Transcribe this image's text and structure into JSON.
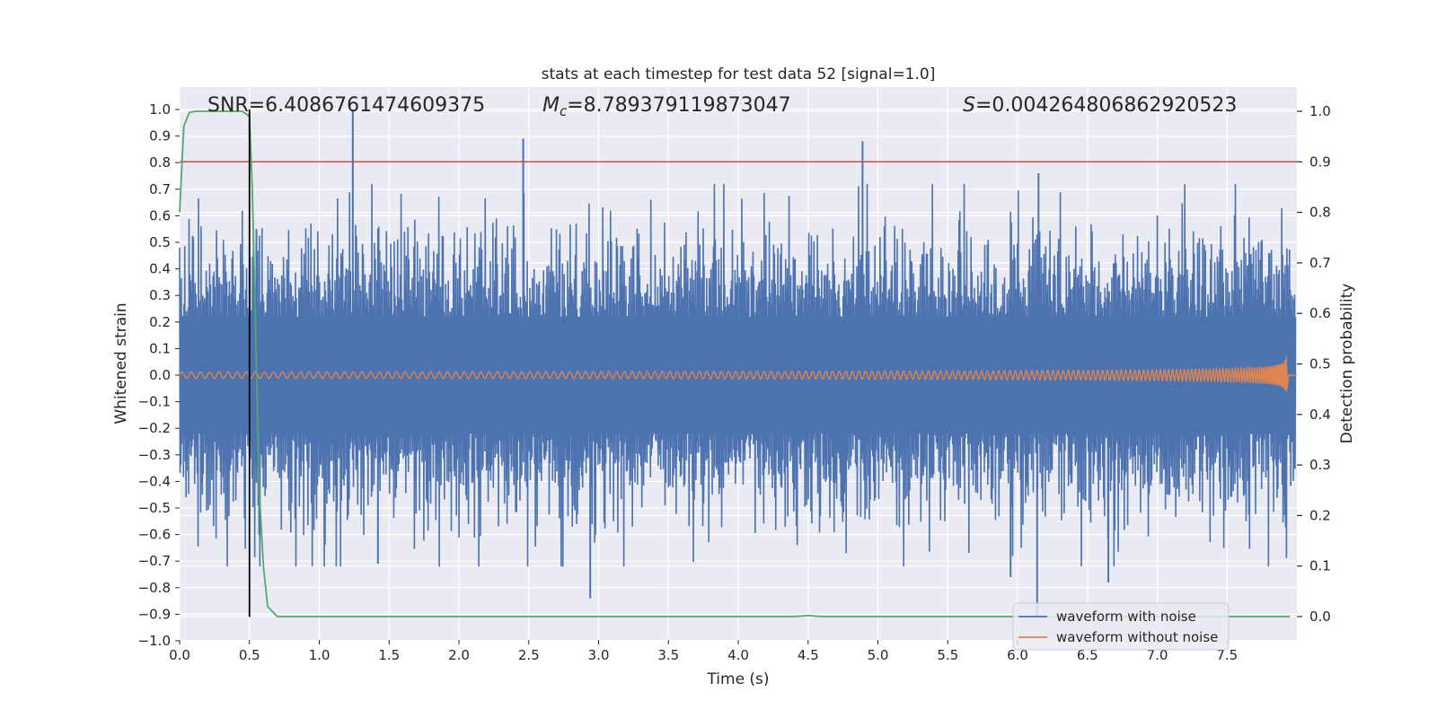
{
  "chart_data": {
    "type": "line",
    "title": "stats at each timestep for test data 52 [signal=1.0]",
    "xlabel": "Time (s)",
    "ylabel": "Whitened strain",
    "y2label": "Detection probability",
    "xlim": [
      0.0,
      8.0
    ],
    "ylim": [
      -1.0,
      1.1
    ],
    "y2lim": [
      -0.05,
      1.05
    ],
    "xticks": [
      "0.0",
      "0.5",
      "1.0",
      "1.5",
      "2.0",
      "2.5",
      "3.0",
      "3.5",
      "4.0",
      "4.5",
      "5.0",
      "5.5",
      "6.0",
      "6.5",
      "7.0",
      "7.5"
    ],
    "yticks": [
      "1.0",
      "0.9",
      "0.8",
      "0.7",
      "0.6",
      "0.5",
      "0.4",
      "0.3",
      "0.2",
      "0.1",
      "0.0",
      "−0.1",
      "−0.2",
      "−0.3",
      "−0.4",
      "−0.5",
      "−0.6",
      "−0.7",
      "−0.8",
      "−0.9",
      "−1.0"
    ],
    "y2ticks": [
      "1.0",
      "0.9",
      "0.8",
      "0.7",
      "0.6",
      "0.5",
      "0.4",
      "0.3",
      "0.2",
      "0.1",
      "0.0"
    ],
    "annotations": {
      "snr": "SNR=6.408676147460937 5",
      "snr_text": "SNR=6.4086761474609375",
      "mc_symbol": "M",
      "mc_sub": "c",
      "mc_value": "=8.789379119873047",
      "s_symbol": "S",
      "s_value": "=0.004264806862920523"
    },
    "series": [
      {
        "name": "waveform with noise",
        "color": "#4c72b0",
        "envelope_typical": 0.42,
        "spikes": [
          [
            1.24,
            1.0
          ],
          [
            2.46,
            0.89
          ],
          [
            4.89,
            0.88
          ],
          [
            6.15,
            0.76
          ],
          [
            0.55,
            0.55
          ],
          [
            2.94,
            -0.84
          ],
          [
            6.14,
            -0.91
          ],
          [
            5.95,
            -0.76
          ],
          [
            6.65,
            -0.78
          ],
          [
            1.42,
            -0.71
          ]
        ]
      },
      {
        "name": "waveform without noise",
        "color": "#dd8452",
        "chirp_end": 7.93,
        "peak_amplitude": 0.17
      },
      {
        "name": "detection probability",
        "color": "#55a868",
        "axis": "y2",
        "x": [
          0.0,
          0.03,
          0.07,
          0.12,
          0.2,
          0.3,
          0.4,
          0.45,
          0.5,
          0.52,
          0.55,
          0.57,
          0.6,
          0.63,
          0.7,
          1.0,
          2.0,
          3.0,
          4.0,
          4.4,
          4.5,
          4.6,
          5.0,
          6.0,
          7.0,
          7.95
        ],
        "y": [
          0.8,
          0.97,
          0.998,
          1.0,
          1.0,
          1.0,
          1.0,
          1.0,
          0.99,
          0.85,
          0.5,
          0.25,
          0.1,
          0.02,
          0.0,
          0.0,
          0.0,
          0.0,
          0.0,
          0.0,
          0.002,
          0.0,
          0.0,
          0.0,
          0.0,
          0.0
        ]
      },
      {
        "name": "threshold",
        "color": "#c44e52",
        "axis": "y2",
        "value": 0.9
      },
      {
        "name": "marker",
        "color": "#000000",
        "x": 0.5,
        "y_range": [
          -0.91,
          1.0
        ]
      }
    ],
    "legend": {
      "position": "lower-right",
      "entries": [
        "waveform with noise",
        "waveform without noise"
      ]
    },
    "grid": true,
    "colors": {
      "background": "#eaeaf2",
      "grid": "#ffffff"
    }
  }
}
